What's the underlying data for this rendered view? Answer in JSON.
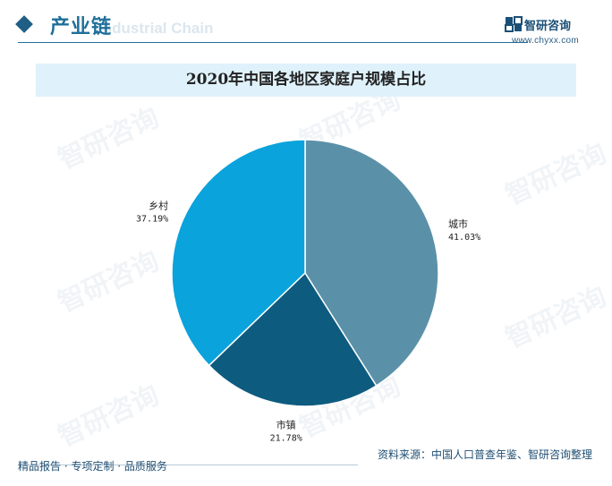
{
  "header": {
    "title": "产业链",
    "subtitle": "Industrial Chain",
    "brand_name": "智研咨询",
    "brand_url": "www.chyxx.com"
  },
  "watermark": "智研咨询",
  "chart_data": {
    "type": "pie",
    "title": "2020年中国各地区家庭户规模占比",
    "slices": [
      {
        "label": "城市",
        "value": 41.03,
        "display": "41.03%",
        "color": "#5b91a8"
      },
      {
        "label": "市镇",
        "value": 21.78,
        "display": "21.78%",
        "color": "#0e5b80"
      },
      {
        "label": "乡村",
        "value": 37.19,
        "display": "37.19%",
        "color": "#0aa3dc"
      }
    ],
    "start_angle_deg": 0,
    "direction": "clockwise"
  },
  "footer": {
    "left": "精品报告 · 专项定制 · 品质服务",
    "source": "资料来源：中国人口普查年鉴、智研咨询整理"
  }
}
